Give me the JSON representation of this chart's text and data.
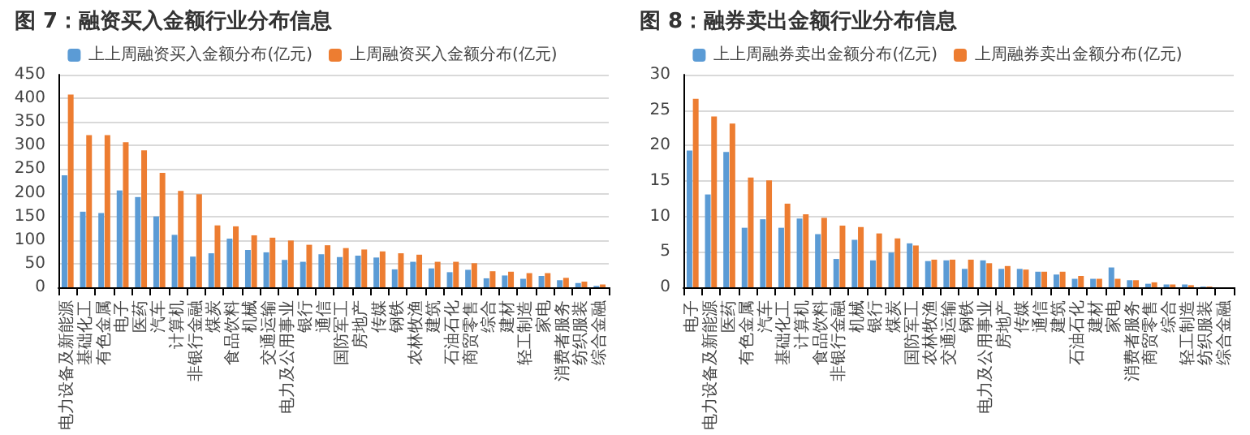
{
  "chart_data": [
    {
      "type": "bar",
      "title": "图 7：融资买入金额行业分布信息",
      "categories": [
        "电力设备及新能源",
        "基础化工",
        "有色金属",
        "电子",
        "医药",
        "汽车",
        "计算机",
        "非银行金融",
        "煤炭",
        "食品饮料",
        "机械",
        "交通运输",
        "电力及公用事业",
        "银行",
        "通信",
        "国防军工",
        "房地产",
        "传媒",
        "钢铁",
        "农林牧渔",
        "建筑",
        "石油石化",
        "商贸零售",
        "综合",
        "建材",
        "轻工制造",
        "家电",
        "消费者服务",
        "纺织服装",
        "综合金融"
      ],
      "series": [
        {
          "name": "上上周融资买入金额分布(亿元)",
          "color": "#5b9bd5",
          "values": [
            237,
            160,
            157,
            205,
            191,
            150,
            111,
            65,
            72,
            103,
            79,
            74,
            58,
            54,
            70,
            64,
            67,
            63,
            38,
            54,
            40,
            32,
            37,
            19,
            25,
            18,
            24,
            15,
            9,
            3
          ]
        },
        {
          "name": "上周融资买入金额分布(亿元)",
          "color": "#ed7d31",
          "values": [
            408,
            322,
            322,
            307,
            290,
            242,
            204,
            197,
            131,
            129,
            110,
            105,
            99,
            90,
            89,
            83,
            80,
            76,
            72,
            69,
            54,
            54,
            51,
            34,
            33,
            30,
            30,
            20,
            12,
            6
          ]
        }
      ],
      "ylim": [
        0,
        450
      ],
      "yticks": [
        0,
        50,
        100,
        150,
        200,
        250,
        300,
        350,
        400,
        450
      ],
      "grid": "y",
      "legend": "top"
    },
    {
      "type": "bar",
      "title": "图 8：融券卖出金额行业分布信息",
      "categories": [
        "电子",
        "电力设备及新能源",
        "医药",
        "有色金属",
        "汽车",
        "基础化工",
        "计算机",
        "食品饮料",
        "非银行金融",
        "机械",
        "银行",
        "煤炭",
        "国防军工",
        "农林牧渔",
        "交通运输",
        "钢铁",
        "电力及公用事业",
        "房地产",
        "传媒",
        "通信",
        "建筑",
        "石油石化",
        "建材",
        "家电",
        "消费者服务",
        "商贸零售",
        "综合",
        "轻工制造",
        "纺织服装",
        "综合金融"
      ],
      "series": [
        {
          "name": "上上周融券卖出金额分布(亿元)",
          "color": "#5b9bd5",
          "values": [
            19.3,
            13.1,
            19.1,
            8.4,
            9.6,
            8.4,
            9.7,
            7.5,
            4.0,
            6.7,
            3.8,
            4.9,
            6.2,
            3.7,
            3.8,
            2.6,
            3.8,
            2.6,
            2.6,
            2.2,
            1.8,
            1.2,
            1.2,
            2.8,
            1.0,
            0.5,
            0.4,
            0.4,
            0.1,
            null
          ]
        },
        {
          "name": "上周融券卖出金额分布(亿元)",
          "color": "#ed7d31",
          "values": [
            26.6,
            24.1,
            23.1,
            15.5,
            15.1,
            11.8,
            10.3,
            9.8,
            8.7,
            8.5,
            7.6,
            6.9,
            5.9,
            3.9,
            3.9,
            3.9,
            3.4,
            3.0,
            2.5,
            2.2,
            2.2,
            1.6,
            1.2,
            1.2,
            1.0,
            0.7,
            0.4,
            0.3,
            0.1,
            null
          ]
        }
      ],
      "ylim": [
        0,
        30
      ],
      "yticks": [
        0,
        5,
        10,
        15,
        20,
        25,
        30
      ],
      "grid": "y",
      "legend": "top"
    }
  ]
}
